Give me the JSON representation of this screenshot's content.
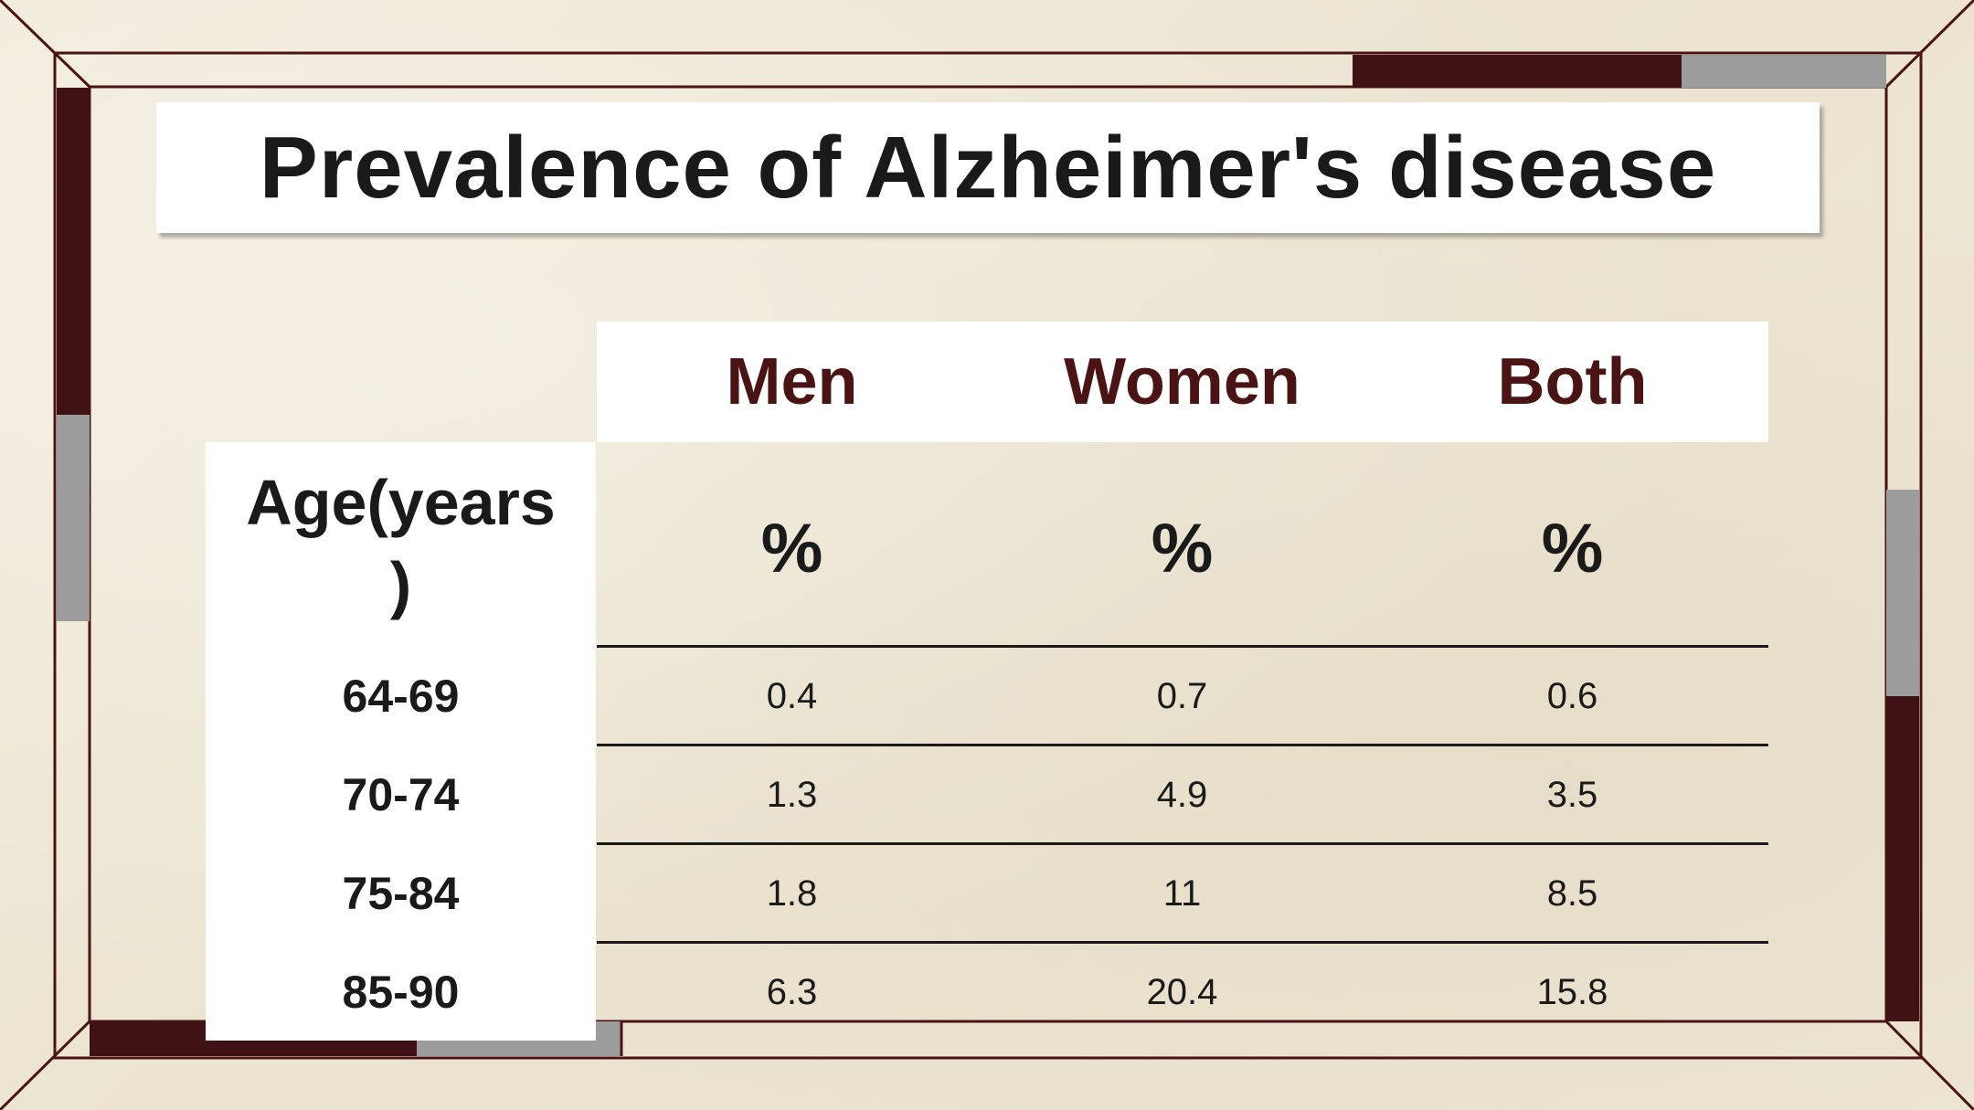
{
  "title": "Prevalence of Alzheimer's disease",
  "table": {
    "columns": [
      "Men",
      "Women",
      "Both"
    ],
    "units": [
      "%",
      "%",
      "%"
    ],
    "age_header": "Age(years\n)",
    "rows": [
      {
        "age": "64-69",
        "values": [
          "0.4",
          "0.7",
          "0.6"
        ]
      },
      {
        "age": "70-74",
        "values": [
          "1.3",
          "4.9",
          "3.5"
        ]
      },
      {
        "age": "75-84",
        "values": [
          "1.8",
          "11",
          "8.5"
        ]
      },
      {
        "age": "85-90",
        "values": [
          "6.3",
          "20.4",
          "15.8"
        ]
      }
    ]
  },
  "colors": {
    "frame_dark": "#3f1215",
    "frame_gray": "#9c9c9c",
    "header_text": "#4a1414",
    "background": "#efe8d6"
  }
}
